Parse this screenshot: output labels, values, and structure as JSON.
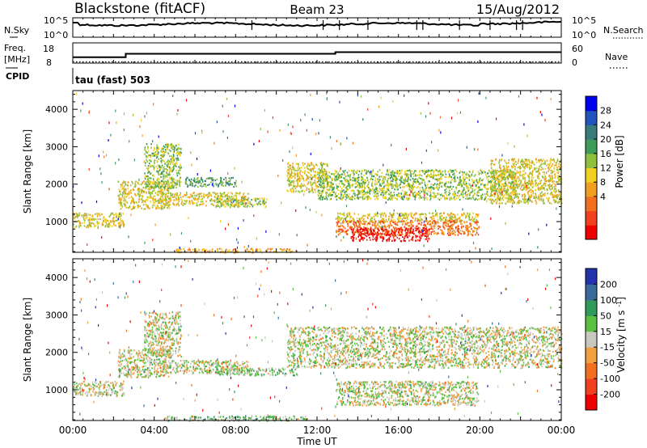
{
  "header": {
    "station": "Blackstone (fitACF)",
    "beam": "Beam 23",
    "date": "15/Aug/2012"
  },
  "noise_panel": {
    "left_label": "N.Sky",
    "left_ticks": [
      "10^5",
      "10^0"
    ],
    "right_label": "N.Search",
    "right_ticks": [
      "10^5",
      "10^0"
    ]
  },
  "freq_panel": {
    "left_label_1": "Freq.",
    "left_label_2": "[MHz]",
    "left_ticks": [
      "18",
      "8"
    ],
    "right_label": "Nave",
    "right_ticks": [
      "60",
      "0"
    ],
    "freq_steps": [
      {
        "time_h": 0.0,
        "mhz": 10.5
      },
      {
        "time_h": 2.6,
        "mhz": 13.0
      },
      {
        "time_h": 12.9,
        "mhz": 14.2
      }
    ],
    "nave_level": 6
  },
  "cpid": {
    "label": "CPID",
    "text": "tau (fast) 503"
  },
  "chart_data": [
    {
      "type": "heatmap",
      "title": "",
      "quantity": "Power",
      "ylabel": "Slant Range [km]",
      "xlabel": "",
      "xlim_hours_ut": [
        0,
        24
      ],
      "ylim_km": [
        180,
        4500
      ],
      "yticks": [
        "4000",
        "3000",
        "2000",
        "1000"
      ],
      "colorbar": {
        "label": "Power [dB]",
        "ticks": [
          "28",
          "24",
          "20",
          "16",
          "12",
          "8",
          "4"
        ],
        "colors": [
          "#0000ee",
          "#2255bb",
          "#3b7a7a",
          "#3f9b5a",
          "#8fbf3f",
          "#f0d020",
          "#f0a020",
          "#f07020",
          "#f04020",
          "#ee0000"
        ]
      },
      "regions": [
        {
          "t0": 0.0,
          "t1": 2.5,
          "r0": 850,
          "r1": 1250,
          "level": 5
        },
        {
          "t0": 2.2,
          "t1": 4.8,
          "r0": 1350,
          "r1": 2100,
          "level": 5
        },
        {
          "t0": 3.5,
          "t1": 5.3,
          "r0": 1900,
          "r1": 3100,
          "level": 4
        },
        {
          "t0": 4.2,
          "t1": 8.6,
          "r0": 1450,
          "r1": 1800,
          "level": 5
        },
        {
          "t0": 5.5,
          "t1": 8.0,
          "r0": 1950,
          "r1": 2200,
          "level": 3
        },
        {
          "t0": 7.0,
          "t1": 9.5,
          "r0": 1400,
          "r1": 1650,
          "level": 4
        },
        {
          "t0": 10.5,
          "t1": 12.5,
          "r0": 1800,
          "r1": 2600,
          "level": 5
        },
        {
          "t0": 12.0,
          "t1": 21.8,
          "r0": 1600,
          "r1": 2400,
          "level": 4
        },
        {
          "t0": 20.5,
          "t1": 24.0,
          "r0": 1500,
          "r1": 2700,
          "level": 5
        },
        {
          "t0": 12.9,
          "t1": 19.9,
          "r0": 1000,
          "r1": 1250,
          "level": 5
        },
        {
          "t0": 12.9,
          "t1": 19.9,
          "r0": 650,
          "r1": 1050,
          "level": 7
        },
        {
          "t0": 13.6,
          "t1": 17.5,
          "r0": 500,
          "r1": 850,
          "level": 9
        },
        {
          "t0": 5.0,
          "t1": 11.0,
          "r0": 190,
          "r1": 300,
          "level": 6
        }
      ]
    },
    {
      "type": "heatmap",
      "title": "",
      "quantity": "Velocity",
      "ylabel": "Slant Range [km]",
      "xlabel": "Time UT",
      "xlim_hours_ut": [
        0,
        24
      ],
      "ylim_km": [
        180,
        4500
      ],
      "yticks": [
        "4000",
        "3000",
        "2000",
        "1000"
      ],
      "xticks": [
        "00:00",
        "04:00",
        "08:00",
        "12:00",
        "16:00",
        "20:00",
        "00:00"
      ],
      "colorbar": {
        "label": "Velocity [m s^-1]",
        "ticks": [
          "200",
          "100",
          "50",
          "15",
          "-15",
          "-50",
          "-100",
          "-200"
        ],
        "colors": [
          "#2233aa",
          "#3a6a9a",
          "#2f9a5a",
          "#5ac040",
          "#c8c8c0",
          "#f0a040",
          "#f07020",
          "#f04020",
          "#ee0000"
        ]
      },
      "regions": [
        {
          "t0": 0.0,
          "t1": 2.5,
          "r0": 850,
          "r1": 1250,
          "level": 4
        },
        {
          "t0": 2.2,
          "t1": 4.8,
          "r0": 1350,
          "r1": 2100,
          "level": 4
        },
        {
          "t0": 3.5,
          "t1": 5.3,
          "r0": 1900,
          "r1": 3100,
          "level": 4
        },
        {
          "t0": 4.2,
          "t1": 8.6,
          "r0": 1450,
          "r1": 1800,
          "level": 4
        },
        {
          "t0": 10.5,
          "t1": 24.0,
          "r0": 1600,
          "r1": 2700,
          "level": 4
        },
        {
          "t0": 12.9,
          "t1": 19.9,
          "r0": 600,
          "r1": 1250,
          "level": 4
        },
        {
          "t0": 7.0,
          "t1": 11.0,
          "r0": 1400,
          "r1": 1600,
          "level": 3
        },
        {
          "t0": 4.5,
          "t1": 11.5,
          "r0": 190,
          "r1": 320,
          "level": 3
        }
      ]
    }
  ]
}
